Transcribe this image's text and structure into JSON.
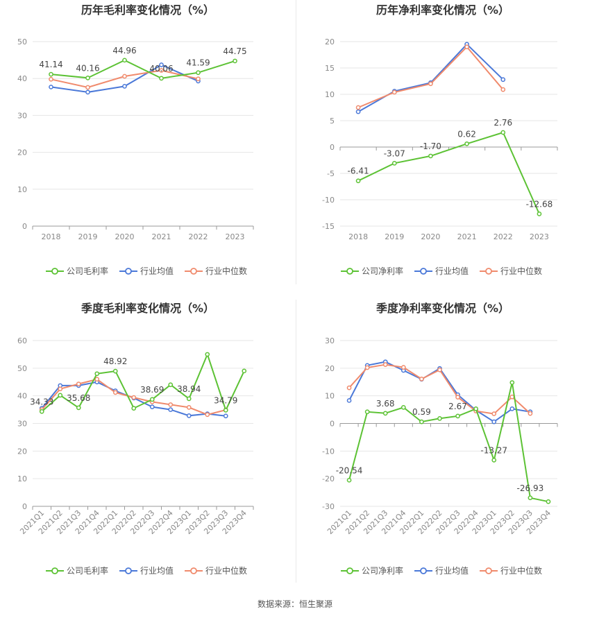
{
  "footer": "数据来源：恒生聚源",
  "colors": {
    "company": "#5cc234",
    "avg": "#4a78d8",
    "median": "#f08a6c"
  },
  "chart_data": [
    {
      "type": "line",
      "title": "历年毛利率变化情况（%）",
      "categories": [
        "2018",
        "2019",
        "2020",
        "2021",
        "2022",
        "2023"
      ],
      "ylim": [
        0,
        50
      ],
      "yticks": [
        0,
        10,
        20,
        30,
        40,
        50
      ],
      "legend_position": "bottom",
      "series": [
        {
          "name": "公司毛利率",
          "values": [
            41.14,
            40.16,
            44.96,
            40.06,
            41.59,
            44.75
          ],
          "labels": [
            "41.14",
            "40.16",
            "44.96",
            "40.06",
            "41.59",
            "44.75"
          ]
        },
        {
          "name": "行业均值",
          "values": [
            37.7,
            36.3,
            37.9,
            43.7,
            39.3,
            null
          ]
        },
        {
          "name": "行业中位数",
          "values": [
            39.8,
            37.6,
            40.6,
            42.2,
            39.9,
            null
          ]
        }
      ]
    },
    {
      "type": "line",
      "title": "历年净利率变化情况（%）",
      "categories": [
        "2018",
        "2019",
        "2020",
        "2021",
        "2022",
        "2023"
      ],
      "ylim": [
        -15,
        20
      ],
      "yticks": [
        -15,
        -10,
        -5,
        0,
        5,
        10,
        15,
        20
      ],
      "legend_position": "bottom",
      "series": [
        {
          "name": "公司净利率",
          "values": [
            -6.41,
            -3.07,
            -1.7,
            0.62,
            2.76,
            -12.68
          ],
          "labels": [
            "-6.41",
            "-3.07",
            "-1.70",
            "0.62",
            "2.76",
            "-12.68"
          ]
        },
        {
          "name": "行业均值",
          "values": [
            6.7,
            10.6,
            12.2,
            19.5,
            12.8,
            null
          ]
        },
        {
          "name": "行业中位数",
          "values": [
            7.5,
            10.4,
            12.0,
            19.0,
            10.9,
            null
          ]
        }
      ]
    },
    {
      "type": "line",
      "title": "季度毛利率变化情况（%）",
      "categories": [
        "2021Q1",
        "2021Q2",
        "2021Q3",
        "2021Q4",
        "2022Q1",
        "2022Q2",
        "2022Q3",
        "2022Q4",
        "2023Q1",
        "2023Q2",
        "2023Q3",
        "2023Q4"
      ],
      "ylim": [
        0,
        60
      ],
      "yticks": [
        0,
        10,
        20,
        30,
        40,
        50,
        60
      ],
      "legend_position": "bottom",
      "series": [
        {
          "name": "公司毛利率",
          "values": [
            34.33,
            40.2,
            35.68,
            48.0,
            48.92,
            35.5,
            38.69,
            44.0,
            38.94,
            55.0,
            34.79,
            49.0
          ],
          "labels": [
            "34.33",
            "",
            "35.68",
            "",
            "48.92",
            "",
            "38.69",
            "",
            "38.94",
            "",
            "34.79",
            ""
          ]
        },
        {
          "name": "行业均值",
          "values": [
            35.5,
            43.7,
            43.7,
            45.0,
            41.8,
            39.2,
            36.0,
            35.0,
            32.8,
            33.5,
            32.7,
            null
          ]
        },
        {
          "name": "行业中位数",
          "values": [
            35.0,
            42.5,
            44.3,
            46.0,
            41.2,
            39.4,
            37.8,
            36.8,
            35.8,
            33.2,
            34.9,
            null
          ]
        }
      ]
    },
    {
      "type": "line",
      "title": "季度净利率变化情况（%）",
      "categories": [
        "2021Q1",
        "2021Q2",
        "2021Q3",
        "2021Q4",
        "2022Q1",
        "2022Q2",
        "2022Q3",
        "2022Q4",
        "2023Q1",
        "2023Q2",
        "2023Q3",
        "2023Q4"
      ],
      "ylim": [
        -30,
        30
      ],
      "yticks": [
        -30,
        -20,
        -10,
        0,
        10,
        20,
        30
      ],
      "legend_position": "bottom",
      "series": [
        {
          "name": "公司净利率",
          "values": [
            -20.54,
            4.2,
            3.68,
            5.8,
            0.59,
            1.8,
            2.67,
            5.3,
            -13.27,
            14.8,
            -26.93,
            -28.3
          ],
          "labels": [
            "-20.54",
            "",
            "3.68",
            "",
            "0.59",
            "",
            "2.67",
            "",
            "-13.27",
            "",
            "-26.93",
            ""
          ]
        },
        {
          "name": "行业均值",
          "values": [
            8.3,
            21.0,
            22.3,
            19.2,
            16.0,
            19.9,
            10.4,
            4.8,
            0.6,
            5.3,
            4.2,
            null
          ]
        },
        {
          "name": "行业中位数",
          "values": [
            12.9,
            20.2,
            21.3,
            20.3,
            16.1,
            19.4,
            9.5,
            4.5,
            3.5,
            9.6,
            3.6,
            null
          ]
        }
      ]
    }
  ]
}
